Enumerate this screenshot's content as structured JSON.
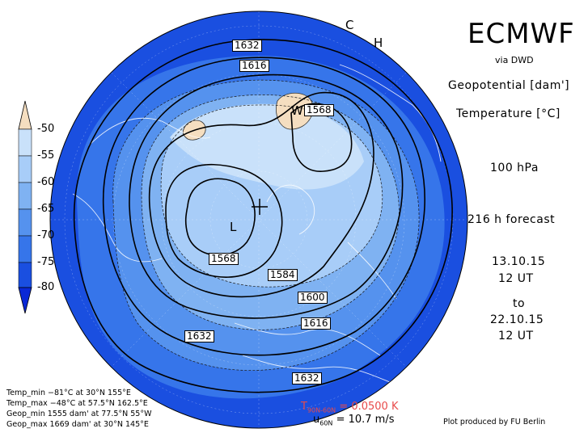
{
  "header": {
    "title": "ECMWF",
    "source": "via DWD",
    "variable_geopotential": "Geopotential",
    "unit_geopotential": "[dam']",
    "variable_temperature": "Temperature",
    "unit_temperature": "[°C]",
    "level": "100 hPa",
    "forecast": "216 h forecast",
    "init_date": "13.10.15",
    "init_time": "12 UT",
    "to_label": "to",
    "valid_date": "22.10.15",
    "valid_time": "12 UT"
  },
  "color_scale": {
    "labels": [
      "-50",
      "-55",
      "-60",
      "-65",
      "-70",
      "-75",
      "-80"
    ],
    "colors": [
      "#f5dec0",
      "#c9e1fa",
      "#a8cdf8",
      "#7fb2f2",
      "#5592ee",
      "#3675ea",
      "#1a4fe0",
      "#0a28d6"
    ]
  },
  "contour_labels": [
    "1632",
    "1616",
    "1568",
    "1568",
    "1584",
    "1600",
    "1616",
    "1632",
    "1632"
  ],
  "markers": {
    "low": "L",
    "warm": "W",
    "cold": "C",
    "high": "H"
  },
  "stats": {
    "temp_min": "Temp_min −81°C at 30°N 155°E",
    "temp_max": "Temp_max −48°C at 57.5°N 162.5°E",
    "geop_min": "Geop_min 1555 dam' at 77.5°N 55°W",
    "geop_max": "Geop_max 1669 dam' at 30°N 145°E"
  },
  "footer": {
    "t_diff_symbol": "T",
    "t_diff_sub": "90N-60N",
    "t_diff_value": "= 0.0500 K",
    "u_symbol": "u",
    "u_sub": "60N",
    "u_value": "= 10.7 m/s",
    "credit": "Plot produced by FU Berlin"
  }
}
